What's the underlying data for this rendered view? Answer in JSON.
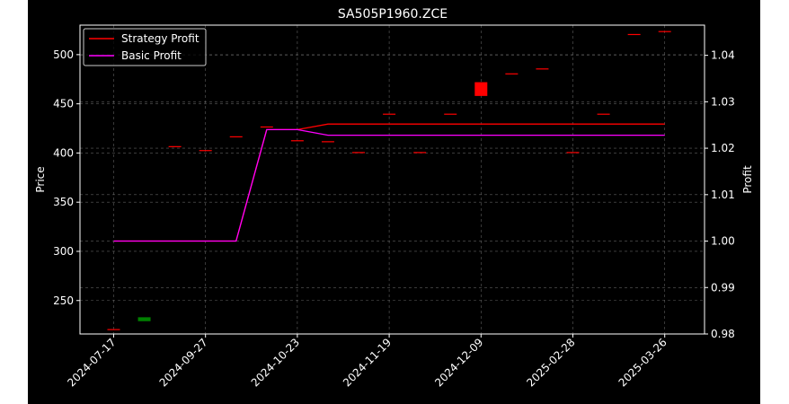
{
  "chart_data": {
    "type": "candlestick+line",
    "title": "SA505P1960.ZCE",
    "ylabel_left": "Price",
    "ylabel_right": "Profit",
    "ylim_left": [
      216,
      530
    ],
    "ylim_right": [
      0.98,
      1.0465
    ],
    "yticks_left": [
      250,
      300,
      350,
      400,
      450,
      500
    ],
    "yticks_right": [
      0.98,
      0.99,
      1.0,
      1.01,
      1.02,
      1.03,
      1.04
    ],
    "ytick_labels_right": [
      "0.98",
      "0.99",
      "1.00",
      "1.01",
      "1.02",
      "1.03",
      "1.04"
    ],
    "x_tick_labels": [
      "2024-07-17",
      "2024-09-27",
      "2024-10-23",
      "2024-11-19",
      "2024-12-09",
      "2025-02-28",
      "2025-03-26"
    ],
    "x_tick_index": [
      0,
      3,
      6,
      9,
      12,
      15,
      18
    ],
    "xlim": [
      -1.1,
      19.3
    ],
    "grid": true,
    "legend_position": "top-left",
    "candles": [
      {
        "i": 0,
        "open": 220,
        "close": 221,
        "color": "#ff0000"
      },
      {
        "i": 1,
        "open": 233,
        "close": 229,
        "color": "#008000"
      },
      {
        "i": 2,
        "open": 406,
        "close": 407,
        "color": "#ff0000"
      },
      {
        "i": 3,
        "open": 402,
        "close": 403,
        "color": "#ff0000"
      },
      {
        "i": 4,
        "open": 416,
        "close": 417,
        "color": "#ff0000"
      },
      {
        "i": 5,
        "open": 426,
        "close": 427,
        "color": "#ff0000"
      },
      {
        "i": 6,
        "open": 412,
        "close": 413,
        "color": "#ff0000"
      },
      {
        "i": 7,
        "open": 411,
        "close": 412,
        "color": "#ff0000"
      },
      {
        "i": 8,
        "open": 400,
        "close": 401,
        "color": "#ff0000"
      },
      {
        "i": 9,
        "open": 439,
        "close": 440,
        "color": "#ff0000"
      },
      {
        "i": 10,
        "open": 400,
        "close": 401,
        "color": "#ff0000"
      },
      {
        "i": 11,
        "open": 439,
        "close": 440,
        "color": "#ff0000"
      },
      {
        "i": 12,
        "open": 458,
        "close": 472,
        "color": "#ff0000"
      },
      {
        "i": 13,
        "open": 480,
        "close": 481,
        "color": "#ff0000"
      },
      {
        "i": 14,
        "open": 485,
        "close": 486,
        "color": "#ff0000"
      },
      {
        "i": 15,
        "open": 400,
        "close": 401,
        "color": "#ff0000"
      },
      {
        "i": 16,
        "open": 439,
        "close": 440,
        "color": "#ff0000"
      },
      {
        "i": 17,
        "open": 520,
        "close": 521,
        "color": "#ff0000"
      },
      {
        "i": 18,
        "open": 523,
        "close": 524,
        "color": "#ff0000"
      }
    ],
    "series": [
      {
        "name": "Strategy Profit",
        "color": "#ff0000",
        "x": [
          0,
          1,
          2,
          3,
          4,
          5,
          6,
          7,
          8,
          9,
          10,
          11,
          12,
          13,
          14,
          15,
          16,
          17,
          18
        ],
        "values": [
          1.0,
          1.0,
          1.0,
          1.0,
          1.0,
          1.024,
          1.024,
          1.0252,
          1.0252,
          1.0252,
          1.0252,
          1.0252,
          1.0252,
          1.0252,
          1.0252,
          1.0252,
          1.0252,
          1.0252,
          1.0252
        ]
      },
      {
        "name": "Basic Profit",
        "color": "#ff00ff",
        "x": [
          0,
          1,
          2,
          3,
          4,
          5,
          6,
          7,
          8,
          9,
          10,
          11,
          12,
          13,
          14,
          15,
          16,
          17,
          18
        ],
        "values": [
          1.0,
          1.0,
          1.0,
          1.0,
          1.0,
          1.024,
          1.024,
          1.0228,
          1.0228,
          1.0228,
          1.0228,
          1.0228,
          1.0228,
          1.0228,
          1.0228,
          1.0228,
          1.0228,
          1.0228,
          1.0228
        ]
      }
    ]
  }
}
